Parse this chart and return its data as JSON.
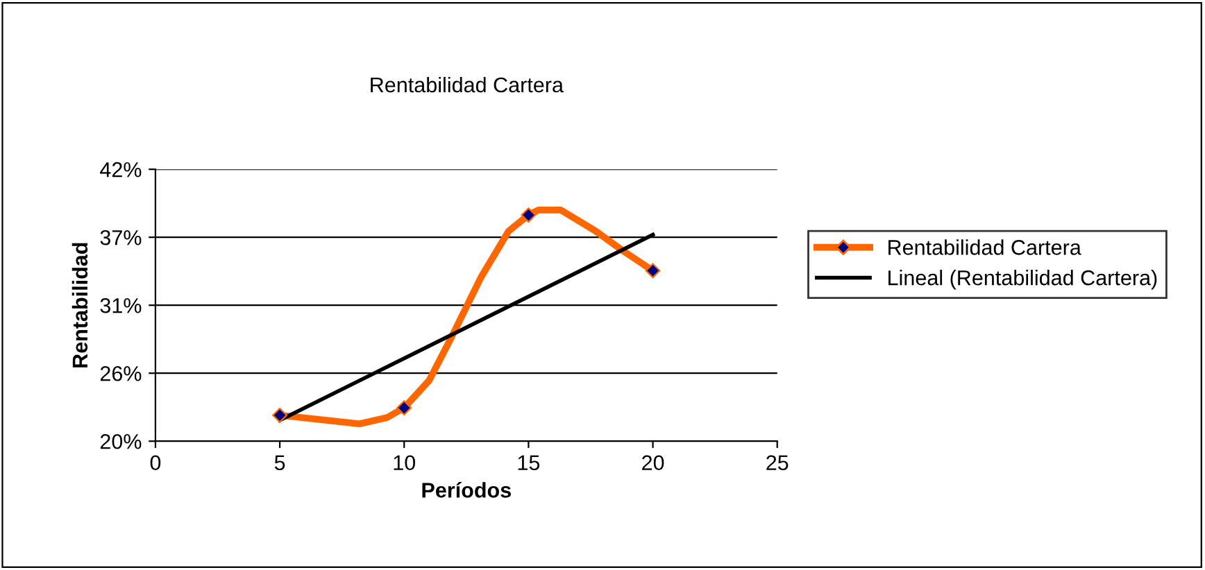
{
  "chart_data": {
    "type": "line",
    "title": "Rentabilidad Cartera",
    "xlabel": "Períodos",
    "ylabel": "Rentabilidad",
    "series": [
      {
        "name": "Rentabilidad Cartera",
        "color": "#ff6600",
        "x": [
          5,
          8.2,
          9.3,
          10,
          11,
          11.9,
          13.1,
          14.2,
          15,
          15.4,
          16.3,
          17.7,
          18.8,
          20
        ],
        "values": [
          22.1,
          21.4,
          21.9,
          22.7,
          24.9,
          28.4,
          33.3,
          37,
          38.3,
          38.7,
          38.7,
          37,
          35.4,
          33.8
        ],
        "marker": "none"
      },
      {
        "type": "scatter",
        "color": "#000080",
        "x": [
          5,
          10,
          15,
          20
        ],
        "values": [
          22.1,
          22.7,
          38.3,
          33.8
        ],
        "marker": "diamond"
      },
      {
        "name": "Lineal (Rentabilidad Cartera)",
        "color": "#000000",
        "x": [
          5,
          20
        ],
        "values": [
          21.7,
          36.7
        ],
        "marker": "none"
      }
    ],
    "xlim": [
      0,
      25
    ],
    "xticks": [
      0,
      5,
      10,
      15,
      20,
      25
    ],
    "ylim": [
      20,
      42
    ],
    "yticks": [
      {
        "value": 20,
        "label": "20%"
      },
      {
        "value": 25.5,
        "label": "26%"
      },
      {
        "value": 31,
        "label": "31%"
      },
      {
        "value": 36.5,
        "label": "37%"
      },
      {
        "value": 42,
        "label": "42%"
      }
    ],
    "grid": "y",
    "legend": "right",
    "line_style": "solid"
  }
}
